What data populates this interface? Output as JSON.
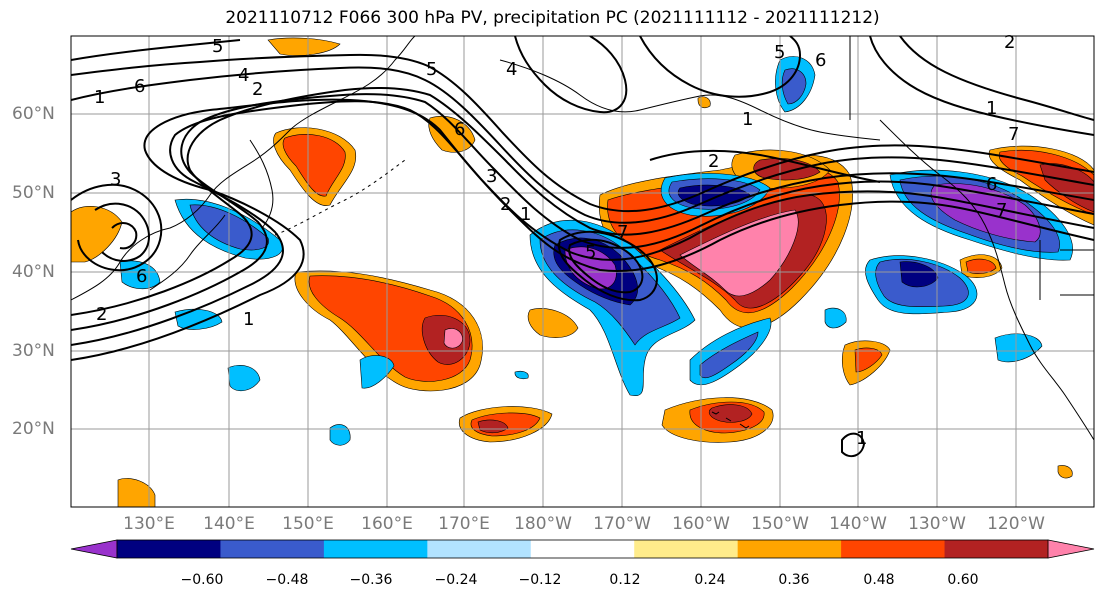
{
  "title": "2021110712 F066 300 hPa PV, precipitation PC (2021111112 - 2021111212)",
  "lat_labels": [
    "60°N",
    "50°N",
    "40°N",
    "30°N",
    "20°N"
  ],
  "lon_labels": [
    "130°E",
    "140°E",
    "150°E",
    "160°E",
    "170°E",
    "180°W",
    "170°W",
    "160°W",
    "150°W",
    "140°W",
    "130°W",
    "120°W"
  ],
  "colorbar": {
    "colors": [
      "#9932cc",
      "#000080",
      "#3a5bcc",
      "#00bfff",
      "#b2e3ff",
      "#ffffff",
      "#ffec8b",
      "#ffa500",
      "#ff4500",
      "#b22222",
      "#ff82ab"
    ],
    "ticks": [
      "−0.60",
      "−0.48",
      "−0.36",
      "−0.24",
      "−0.12",
      "0.12",
      "0.24",
      "0.36",
      "0.48",
      "0.60"
    ]
  },
  "contour_labels": [
    "5",
    "4",
    "2",
    "1",
    "6",
    "3",
    "6",
    "2",
    "1",
    "6",
    "5",
    "3",
    "2",
    "1",
    "7",
    "5",
    "2",
    "1",
    "6",
    "5",
    "4",
    "2",
    "1",
    "7",
    "6",
    "7",
    "1"
  ],
  "icons": {
    "map-frame": "map-frame-icon",
    "colorbar": "colorbar-icon"
  }
}
